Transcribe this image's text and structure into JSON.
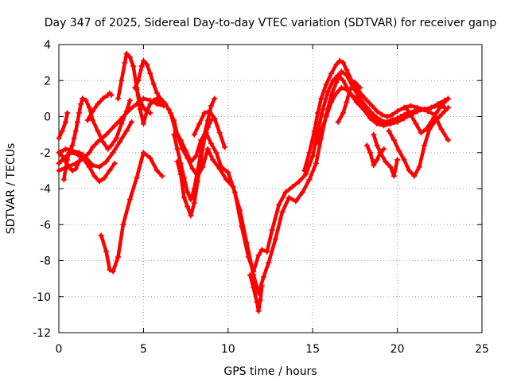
{
  "chart_data": {
    "type": "scatter",
    "title": "Day 347 of 2025, Sidereal Day-to-day VTEC variation (SDTVAR) for receiver ganp",
    "xlabel": "GPS time / hours",
    "ylabel": "SDTVAR / TECUs",
    "xlim": [
      0,
      25
    ],
    "ylim": [
      -12,
      4
    ],
    "xticks": [
      0,
      5,
      10,
      15,
      20,
      25
    ],
    "yticks": [
      -12,
      -10,
      -8,
      -6,
      -4,
      -2,
      0,
      2,
      4
    ],
    "grid": true,
    "marker": "+",
    "color": "#ff0000",
    "series": [
      {
        "name": "trace-1",
        "x": [
          0.0,
          0.2,
          0.4,
          0.5
        ],
        "y": [
          -1.2,
          -0.8,
          -0.3,
          0.2
        ]
      },
      {
        "name": "trace-2",
        "x": [
          0.0,
          0.5,
          1.0,
          1.5,
          1.8,
          2.0,
          2.3,
          2.8,
          3.3,
          3.8,
          4.2,
          4.6,
          5.0,
          5.4,
          5.8,
          6.2
        ],
        "y": [
          -3.0,
          -2.8,
          -2.6,
          -2.3,
          -2.0,
          -1.7,
          -1.4,
          -1.0,
          -0.5,
          0.0,
          0.4,
          0.7,
          1.0,
          0.9,
          0.7,
          0.6
        ]
      },
      {
        "name": "trace-3",
        "x": [
          0.0,
          0.3,
          0.7,
          1.1,
          1.5,
          1.8,
          2.1,
          2.4,
          2.7,
          3.0,
          3.3
        ],
        "y": [
          -2.6,
          -2.3,
          -2.0,
          -2.1,
          -2.4,
          -2.8,
          -3.3,
          -3.6,
          -3.4,
          -3.0,
          -2.6
        ]
      },
      {
        "name": "trace-4",
        "x": [
          0.0,
          0.4,
          0.8,
          1.2,
          1.6,
          2.0,
          2.4,
          2.8,
          3.2,
          3.6,
          4.0,
          4.3
        ],
        "y": [
          -2.0,
          -1.8,
          -1.9,
          -2.0,
          -2.3,
          -2.7,
          -2.8,
          -2.5,
          -2.0,
          -1.4,
          -0.8,
          -0.3
        ]
      },
      {
        "name": "trace-5",
        "x": [
          1.4,
          1.6,
          1.8,
          2.0,
          2.3,
          2.6,
          2.9,
          3.1,
          3.4,
          3.7,
          4.0,
          4.2
        ],
        "y": [
          1.0,
          0.9,
          0.5,
          -0.2,
          -0.8,
          -1.4,
          -1.8,
          -1.6,
          -1.2,
          -0.4,
          0.3,
          0.9
        ]
      },
      {
        "name": "trace-6",
        "x": [
          1.7,
          2.0,
          2.3,
          2.6,
          2.9,
          3.0,
          3.1
        ],
        "y": [
          -0.2,
          0.3,
          0.7,
          1.0,
          1.2,
          1.3,
          1.2
        ]
      },
      {
        "name": "trace-7",
        "x": [
          2.5,
          2.8,
          3.0,
          3.2,
          3.5,
          3.8,
          4.2,
          4.6,
          5.0,
          5.4,
          5.8,
          6.1
        ],
        "y": [
          -6.6,
          -7.5,
          -8.5,
          -8.6,
          -7.8,
          -6.0,
          -4.6,
          -3.4,
          -2.0,
          -2.3,
          -3.0,
          -3.3
        ]
      },
      {
        "name": "trace-8",
        "x": [
          3.5,
          3.7,
          3.9,
          4.0,
          4.2,
          4.4,
          4.6,
          4.8,
          5.0,
          5.2,
          5.4,
          5.6,
          5.8,
          6.0
        ],
        "y": [
          1.0,
          2.0,
          3.0,
          3.5,
          3.3,
          2.8,
          1.6,
          0.4,
          -0.4,
          0.3,
          0.7,
          0.9,
          1.0,
          0.8
        ]
      },
      {
        "name": "trace-9",
        "x": [
          4.5,
          4.7,
          4.9,
          5.0,
          5.2,
          5.4,
          5.6,
          5.8,
          6.0,
          6.2
        ],
        "y": [
          1.6,
          2.0,
          2.8,
          3.1,
          2.9,
          2.4,
          1.8,
          1.3,
          1.0,
          0.8
        ]
      },
      {
        "name": "trace-10",
        "x": [
          4.6,
          4.8,
          5.0,
          5.2,
          5.4
        ],
        "y": [
          1.5,
          0.9,
          0.5,
          0.3,
          0.2
        ]
      },
      {
        "name": "trace-11",
        "x": [
          6.3,
          6.6,
          6.9,
          7.2,
          7.5,
          7.8,
          8.1,
          8.4,
          8.7,
          9.0,
          9.3,
          9.6,
          10.0,
          10.4,
          10.8,
          11.2,
          11.5,
          11.8,
          12.0,
          12.3,
          12.6,
          13.0,
          13.4,
          13.8,
          14.2,
          14.6,
          15.0,
          15.3,
          15.6,
          15.9,
          16.2,
          16.5,
          16.8,
          17.2,
          17.6,
          18.0,
          18.4,
          18.8,
          19.2,
          19.6,
          20.0,
          20.4,
          20.8,
          21.2,
          21.6,
          22.0,
          22.4,
          22.8
        ],
        "y": [
          0.7,
          0.2,
          -0.8,
          -1.3,
          -1.9,
          -2.5,
          -2.2,
          -1.3,
          -0.9,
          -1.5,
          -2.0,
          -2.8,
          -3.1,
          -4.2,
          -6.1,
          -7.8,
          -8.6,
          -7.7,
          -7.4,
          -7.5,
          -6.3,
          -4.9,
          -4.2,
          -3.9,
          -3.6,
          -3.2,
          -2.2,
          -0.8,
          0.4,
          1.4,
          2.0,
          2.3,
          2.0,
          1.3,
          0.8,
          0.4,
          -0.1,
          -0.4,
          -0.5,
          -0.4,
          -0.3,
          -0.1,
          0.1,
          0.3,
          0.4,
          0.5,
          0.6,
          0.5
        ]
      },
      {
        "name": "trace-12",
        "x": [
          6.5,
          6.8,
          7.0,
          7.3,
          7.6,
          7.9,
          8.2,
          8.5,
          8.8,
          9.1,
          9.5,
          9.9,
          10.3,
          10.7,
          11.1,
          11.5,
          11.8,
          12.1,
          12.4,
          12.8,
          13.2,
          13.6,
          14.0,
          14.4,
          14.8,
          15.2,
          15.5,
          15.8,
          16.1,
          16.4,
          16.7,
          17.0,
          17.4,
          17.8,
          18.2,
          18.6,
          19.0,
          19.4,
          19.8,
          20.2,
          20.6,
          21.0,
          21.4,
          21.8,
          22.2,
          22.6,
          23.0
        ],
        "y": [
          0.4,
          -0.2,
          -1.0,
          -1.8,
          -2.3,
          -2.9,
          -3.3,
          -2.8,
          -1.8,
          -2.4,
          -2.9,
          -3.5,
          -3.9,
          -5.2,
          -7.0,
          -8.8,
          -9.8,
          -8.9,
          -8.1,
          -6.8,
          -5.3,
          -4.5,
          -4.7,
          -4.2,
          -3.5,
          -2.6,
          -1.2,
          0.1,
          1.2,
          1.9,
          2.5,
          2.3,
          1.6,
          1.0,
          0.5,
          0.1,
          -0.2,
          -0.3,
          -0.3,
          0.0,
          0.2,
          0.3,
          0.4,
          0.3,
          0.1,
          -0.7,
          -1.3
        ]
      },
      {
        "name": "trace-13",
        "x": [
          6.8,
          7.0,
          7.2,
          7.4,
          7.6,
          7.8,
          8.0,
          8.2,
          8.4,
          8.6,
          8.8,
          9.0,
          9.2
        ],
        "y": [
          -1.0,
          -1.8,
          -2.6,
          -3.4,
          -4.2,
          -4.6,
          -4.0,
          -3.0,
          -2.0,
          -1.0,
          -0.2,
          0.6,
          1.0
        ]
      },
      {
        "name": "trace-14",
        "x": [
          7.0,
          7.2,
          7.4,
          7.6,
          7.8,
          8.0,
          8.2,
          8.4,
          8.6,
          8.8,
          9.0
        ],
        "y": [
          -2.5,
          -3.2,
          -4.5,
          -5.0,
          -5.5,
          -4.8,
          -3.6,
          -2.4,
          -1.2,
          -0.6,
          -0.2
        ]
      },
      {
        "name": "trace-15",
        "x": [
          8.0,
          8.3,
          8.6,
          8.9,
          9.2,
          9.5,
          9.8
        ],
        "y": [
          -1.0,
          -0.4,
          0.2,
          0.3,
          -0.1,
          -0.9,
          -1.7
        ]
      },
      {
        "name": "trace-16",
        "x": [
          11.3,
          11.5,
          11.7,
          11.8,
          11.9,
          12.0
        ],
        "y": [
          -8.8,
          -9.5,
          -10.3,
          -10.8,
          -10.2,
          -9.4
        ]
      },
      {
        "name": "trace-17",
        "x": [
          14.5,
          14.8,
          15.1,
          15.3,
          15.5,
          15.8,
          16.1,
          16.4,
          16.6,
          16.8,
          17.0,
          17.3,
          17.6,
          17.9,
          18.2,
          18.5,
          18.8,
          19.1,
          19.4,
          19.7,
          20.0,
          20.4,
          20.8,
          21.2,
          21.6,
          22.0,
          22.4,
          22.8,
          23.0
        ],
        "y": [
          -3.0,
          -2.0,
          -0.8,
          0.2,
          1.0,
          1.8,
          2.4,
          2.9,
          3.1,
          3.0,
          2.6,
          2.0,
          1.6,
          1.2,
          0.9,
          0.6,
          0.3,
          0.1,
          0.0,
          0.1,
          0.3,
          0.5,
          0.6,
          0.5,
          0.4,
          0.5,
          0.7,
          0.9,
          1.0
        ]
      },
      {
        "name": "trace-18",
        "x": [
          15.2,
          15.5,
          15.8,
          16.1,
          16.4,
          16.7,
          17.0,
          17.3,
          17.6,
          17.9,
          18.2,
          18.5,
          18.8,
          19.2,
          19.6,
          20.0,
          20.4,
          20.8,
          21.2
        ],
        "y": [
          -1.5,
          -0.8,
          0.0,
          0.8,
          1.3,
          1.6,
          1.5,
          1.2,
          1.0,
          0.8,
          0.5,
          0.1,
          -0.3,
          -0.4,
          -0.2,
          -0.1,
          0.1,
          0.2,
          0.3
        ]
      },
      {
        "name": "trace-19",
        "x": [
          16.5,
          16.8,
          17.0,
          17.2,
          17.5,
          17.8
        ],
        "y": [
          -0.3,
          0.2,
          0.8,
          1.5,
          1.9,
          1.6
        ]
      },
      {
        "name": "trace-20",
        "x": [
          18.6,
          18.8,
          19.0,
          19.3,
          19.6,
          19.8,
          20.0
        ],
        "y": [
          -1.0,
          -1.6,
          -2.0,
          -2.5,
          -2.8,
          -3.3,
          -2.4
        ]
      },
      {
        "name": "trace-21",
        "x": [
          18.2,
          18.4,
          18.6,
          18.8,
          19.0,
          19.2
        ],
        "y": [
          -1.6,
          -2.0,
          -2.7,
          -2.4,
          -2.0,
          -1.8
        ]
      },
      {
        "name": "trace-22",
        "x": [
          19.5,
          19.8,
          20.1,
          20.4,
          20.7,
          21.0,
          21.3,
          21.6,
          21.9,
          22.2,
          22.5,
          22.8,
          23.0
        ],
        "y": [
          -0.8,
          -1.3,
          -1.9,
          -2.4,
          -3.0,
          -3.3,
          -2.8,
          -1.6,
          -0.7,
          -0.3,
          0.0,
          0.3,
          0.5
        ]
      },
      {
        "name": "trace-23",
        "x": [
          20.5,
          20.8,
          21.1,
          21.4,
          21.7,
          22.0,
          22.3,
          22.6,
          22.9
        ],
        "y": [
          0.5,
          0.1,
          -0.4,
          -0.9,
          -0.7,
          -0.3,
          0.2,
          0.6,
          0.9
        ]
      },
      {
        "name": "trace-24",
        "x": [
          0.3,
          0.4,
          0.5,
          0.6,
          0.7,
          0.8,
          0.9,
          1.0,
          1.1,
          1.2,
          1.3,
          1.4
        ],
        "y": [
          -3.5,
          -2.9,
          -2.4,
          -2.0,
          -1.8,
          -1.6,
          -1.2,
          -0.8,
          -0.3,
          0.2,
          0.7,
          1.0
        ]
      },
      {
        "name": "trace-25",
        "x": [
          0.0,
          0.2,
          0.4,
          0.6,
          0.8,
          1.0,
          1.2,
          1.4
        ],
        "y": [
          -2.0,
          -2.2,
          -2.5,
          -2.8,
          -3.0,
          -2.9,
          -2.5,
          -2.1
        ]
      }
    ]
  }
}
